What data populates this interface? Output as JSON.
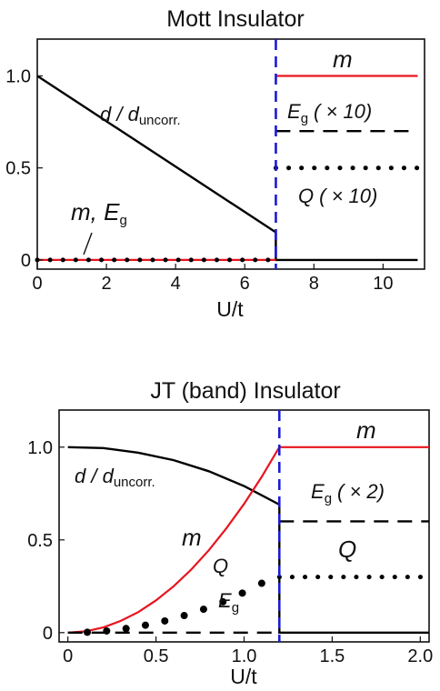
{
  "chart_data": [
    {
      "type": "line",
      "title": "Mott Insulator",
      "xlabel": "U/t",
      "xlim": [
        0,
        11.2
      ],
      "ylim": [
        -0.05,
        1.2
      ],
      "xticks": [
        {
          "v": 0,
          "label": "0"
        },
        {
          "v": 2,
          "label": "2"
        },
        {
          "v": 4,
          "label": "4"
        },
        {
          "v": 6,
          "label": "6"
        },
        {
          "v": 8,
          "label": "8"
        },
        {
          "v": 10,
          "label": "10"
        }
      ],
      "yticks": [
        {
          "v": 0,
          "label": "0"
        },
        {
          "v": 0.5,
          "label": "0.5"
        },
        {
          "v": 1.0,
          "label": "1.0"
        }
      ],
      "transition_x": 6.9,
      "series": [
        {
          "key": "d",
          "style": "solid",
          "color": "#000000",
          "x": [
            0,
            6.9,
            6.9,
            11
          ],
          "y": [
            1.0,
            0.15,
            0.0,
            0.0
          ]
        },
        {
          "key": "m_low",
          "style": "solid",
          "color": "#e8141e",
          "x": [
            0,
            6.9
          ],
          "y": [
            0.0,
            0.0
          ]
        },
        {
          "key": "m_high",
          "style": "solid",
          "color": "#e8141e",
          "x": [
            6.9,
            11
          ],
          "y": [
            1.0,
            1.0
          ]
        },
        {
          "key": "eg",
          "style": "dashed",
          "color": "#000000",
          "x": [
            6.9,
            11
          ],
          "y": [
            0.7,
            0.7
          ]
        },
        {
          "key": "q_low",
          "style": "dotted",
          "color": "#000000",
          "x": [
            0,
            6.9
          ],
          "y": [
            0.0,
            0.0
          ]
        },
        {
          "key": "q_high",
          "style": "dotted",
          "color": "#000000",
          "x": [
            6.9,
            11
          ],
          "y": [
            0.5,
            0.5
          ]
        }
      ],
      "annotations": {
        "d_main": "d / d",
        "d_sub": "uncorr.",
        "m": "m",
        "eg_main": "E",
        "eg_sub": "g",
        "eg_factor": "( × 10)",
        "q": "Q",
        "q_factor": "( × 10)",
        "m_eg_low": "m,  E",
        "m_eg_low_sub": "g"
      }
    },
    {
      "type": "line",
      "title": "JT (band) Insulator",
      "xlabel": "U/t",
      "xlim": [
        -0.05,
        2.05
      ],
      "ylim": [
        -0.05,
        1.2
      ],
      "xticks": [
        {
          "v": 0,
          "label": "0"
        },
        {
          "v": 0.5,
          "label": "0.5"
        },
        {
          "v": 1.0,
          "label": "1.0"
        },
        {
          "v": 1.5,
          "label": "1.5"
        },
        {
          "v": 2.0,
          "label": "2.0"
        }
      ],
      "yticks": [
        {
          "v": 0,
          "label": "0"
        },
        {
          "v": 0.5,
          "label": "0.5"
        },
        {
          "v": 1.0,
          "label": "1.0"
        }
      ],
      "transition_x": 1.2,
      "series": [
        {
          "key": "d",
          "style": "solid",
          "color": "#000000",
          "x": [
            0,
            0.2,
            0.4,
            0.6,
            0.8,
            1.0,
            1.2,
            1.2,
            2.05
          ],
          "y": [
            1.0,
            0.995,
            0.97,
            0.93,
            0.87,
            0.79,
            0.69,
            0.0,
            0.0
          ]
        },
        {
          "key": "m_curve",
          "style": "solid",
          "color": "#e8141e",
          "x": [
            0,
            0.1,
            0.2,
            0.3,
            0.4,
            0.5,
            0.6,
            0.7,
            0.8,
            0.9,
            1.0,
            1.1,
            1.2
          ],
          "y": [
            0,
            0.007,
            0.028,
            0.063,
            0.111,
            0.174,
            0.25,
            0.34,
            0.444,
            0.563,
            0.694,
            0.84,
            1.0
          ]
        },
        {
          "key": "m_high",
          "style": "solid",
          "color": "#e8141e",
          "x": [
            1.2,
            2.05
          ],
          "y": [
            1.0,
            1.0
          ]
        },
        {
          "key": "eg_low",
          "style": "dashed",
          "color": "#000000",
          "x": [
            0,
            1.2
          ],
          "y": [
            0.0,
            0.0
          ]
        },
        {
          "key": "eg_high",
          "style": "dashed",
          "color": "#000000",
          "x": [
            1.2,
            2.05
          ],
          "y": [
            0.6,
            0.6
          ]
        },
        {
          "key": "q_low",
          "style": "markers",
          "color": "#000000",
          "x": [
            0.11,
            0.22,
            0.33,
            0.44,
            0.55,
            0.66,
            0.77,
            0.88,
            0.99,
            1.1
          ],
          "y": [
            0.002,
            0.009,
            0.022,
            0.04,
            0.063,
            0.092,
            0.126,
            0.166,
            0.213,
            0.266
          ]
        },
        {
          "key": "q_high",
          "style": "dotted",
          "color": "#000000",
          "x": [
            1.2,
            2.05
          ],
          "y": [
            0.3,
            0.3
          ]
        }
      ],
      "annotations": {
        "d_main": "d / d",
        "d_sub": "uncorr.",
        "m_top": "m",
        "eg_main": "E",
        "eg_sub": "g",
        "eg_factor": "( × 2)",
        "q_top": "Q",
        "m_curve_label": "m",
        "q_curve_label": "Q",
        "eg_low_main": "E",
        "eg_low_sub": "g"
      }
    }
  ]
}
